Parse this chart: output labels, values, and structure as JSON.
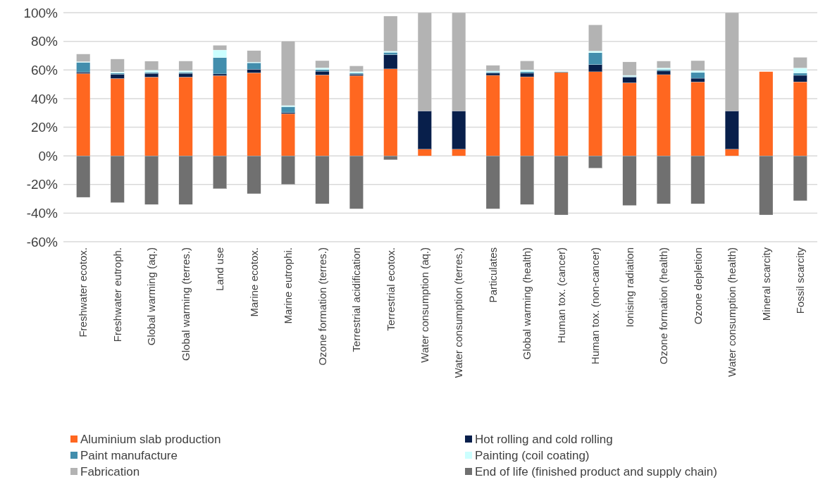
{
  "chart_data": {
    "type": "bar",
    "stacked": true,
    "categories": [
      "Freshwater ecotox.",
      "Freshwater eutroph.",
      "Global warming (aq.)",
      "Global warming (terres.)",
      "Land use",
      "Marine ecotox.",
      "Marine eutrophi.",
      "Ozone formation (terres.)",
      "Terrestrial acidification",
      "Terrestrial ecotox.",
      "Water consumption (aq.)",
      "Water consumption (terres.)",
      "Particulates",
      "Global warming (health)",
      "Human tox. (cancer)",
      "Human tox. (non-cancer)",
      "Ionising radiation",
      "Ozone formation (health)",
      "Ozone depletion",
      "Water consumption (health)",
      "Mineral scarcity",
      "Fossil scarcity"
    ],
    "series": [
      {
        "name": "Aluminium slab production",
        "color": "#ff6720",
        "values": [
          57.5,
          54,
          55,
          55,
          56,
          58,
          29.4,
          56.5,
          56,
          60.7,
          4.6,
          4.6,
          56.2,
          55.2,
          58.2,
          58.7,
          51,
          56.7,
          51.6,
          4.6,
          58.8,
          51.7
        ]
      },
      {
        "name": "Hot rolling and cold rolling",
        "color": "#081f4b",
        "values": [
          1,
          3,
          2.6,
          2.6,
          1.2,
          2.5,
          0.8,
          2.6,
          1,
          10,
          26.8,
          26.8,
          1.5,
          2.5,
          0,
          5,
          4,
          2.5,
          2.6,
          26.8,
          0,
          4.5
        ]
      },
      {
        "name": "Paint manufacture",
        "color": "#428ead",
        "values": [
          6.8,
          0.8,
          0.7,
          0.7,
          11.4,
          4.5,
          4.1,
          1.2,
          0.8,
          1.6,
          0,
          0,
          0.8,
          1,
          0.5,
          8.3,
          0.5,
          1,
          4,
          0,
          0,
          1.6
        ]
      },
      {
        "name": "Painting (coil coating)",
        "color": "#ccffff",
        "values": [
          0.5,
          0.8,
          1.5,
          1.2,
          5.3,
          0.5,
          0.8,
          1.2,
          1,
          0.8,
          0,
          0,
          0.7,
          1.3,
          0,
          1.2,
          0.7,
          1.2,
          1.3,
          0,
          0,
          3.6
        ]
      },
      {
        "name": "Fabrication",
        "color": "#b3b3b3",
        "values": [
          5.3,
          9,
          6.3,
          6.7,
          3.3,
          8,
          45,
          5,
          4,
          24.5,
          68.6,
          68.6,
          4,
          6.3,
          0.2,
          18.3,
          9.4,
          4.8,
          7,
          68.6,
          0,
          7.4
        ]
      },
      {
        "name": "End of life (finished product and supply chain)",
        "color": "#707070",
        "values": [
          -29,
          -32.7,
          -34,
          -34,
          -23,
          -26.5,
          -20,
          -33.5,
          -37,
          -2.8,
          0,
          0,
          -37,
          -34,
          -41.3,
          -8.6,
          -34.7,
          -33.5,
          -33.5,
          0,
          -41.3,
          -31.4
        ]
      }
    ],
    "ylim": [
      -60,
      100
    ],
    "yticks": [
      {
        "value": -60,
        "label": "-60%"
      },
      {
        "value": -40,
        "label": "-40%"
      },
      {
        "value": -20,
        "label": "-20%"
      },
      {
        "value": 0,
        "label": "0%"
      },
      {
        "value": 20,
        "label": "20%"
      },
      {
        "value": 40,
        "label": "40%"
      },
      {
        "value": 60,
        "label": "60%"
      },
      {
        "value": 80,
        "label": "80%"
      },
      {
        "value": 100,
        "label": "100%"
      }
    ],
    "grid": "y",
    "legend": "bottom"
  }
}
